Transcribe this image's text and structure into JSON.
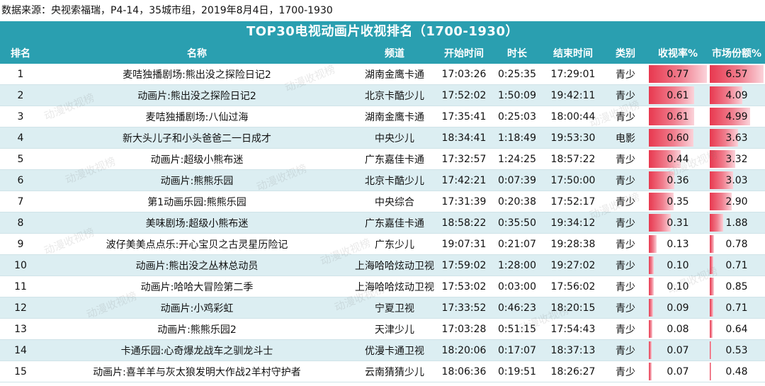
{
  "source": "数据来源：央视索福瑞，P4-14，35城市组，2019年8月4日，1700-1930",
  "title": "TOP30电视动画片收视排名（1700-1930）",
  "headers": [
    "排名",
    "名称",
    "频道",
    "开始时间",
    "时长",
    "结束时间",
    "类别",
    "收视率%",
    "市场份额%"
  ],
  "watermark": "动漫收视榜",
  "colors": {
    "header": "#2a9fb0",
    "alt_row": "#dceef2",
    "bar": "#e8384f"
  },
  "rows": [
    {
      "rank": "1",
      "name": "麦咭独播剧场:熊出没之探险日记2",
      "channel": "湖南金鹰卡通",
      "start": "17:03:26",
      "duration": "0:25:35",
      "end": "17:29:01",
      "category": "青少",
      "rating": "0.77",
      "share": "6.57"
    },
    {
      "rank": "2",
      "name": "动画片:熊出没之探险日记2",
      "channel": "北京卡酷少儿",
      "start": "17:52:02",
      "duration": "1:50:09",
      "end": "19:42:11",
      "category": "青少",
      "rating": "0.61",
      "share": "4.09"
    },
    {
      "rank": "3",
      "name": "麦咭独播剧场:八仙过海",
      "channel": "湖南金鹰卡通",
      "start": "17:35:41",
      "duration": "0:25:03",
      "end": "18:00:44",
      "category": "青少",
      "rating": "0.61",
      "share": "4.99"
    },
    {
      "rank": "4",
      "name": "新大头儿子和小头爸爸二一日成才",
      "channel": "中央少儿",
      "start": "18:34:41",
      "duration": "1:18:49",
      "end": "19:53:30",
      "category": "电影",
      "rating": "0.60",
      "share": "3.63"
    },
    {
      "rank": "5",
      "name": "动画片:超级小熊布迷",
      "channel": "广东嘉佳卡通",
      "start": "17:32:57",
      "duration": "1:24:25",
      "end": "18:57:22",
      "category": "青少",
      "rating": "0.44",
      "share": "3.32"
    },
    {
      "rank": "6",
      "name": "动画片:熊熊乐园",
      "channel": "北京卡酷少儿",
      "start": "17:42:21",
      "duration": "0:07:39",
      "end": "17:50:00",
      "category": "青少",
      "rating": "0.36",
      "share": "3.03"
    },
    {
      "rank": "7",
      "name": "第1动画乐园:熊熊乐园",
      "channel": "中央综合",
      "start": "17:31:39",
      "duration": "0:20:38",
      "end": "17:52:17",
      "category": "青少",
      "rating": "0.35",
      "share": "2.90"
    },
    {
      "rank": "8",
      "name": "美味剧场:超级小熊布迷",
      "channel": "广东嘉佳卡通",
      "start": "18:58:22",
      "duration": "0:35:50",
      "end": "19:34:12",
      "category": "青少",
      "rating": "0.31",
      "share": "1.88"
    },
    {
      "rank": "9",
      "name": "波仔美美点点乐:开心宝贝之古灵星历险记",
      "channel": "广东少儿",
      "start": "19:07:31",
      "duration": "0:21:07",
      "end": "19:28:38",
      "category": "青少",
      "rating": "0.13",
      "share": "0.78"
    },
    {
      "rank": "10",
      "name": "动画片:熊出没之丛林总动员",
      "channel": "上海哈哈炫动卫视",
      "start": "17:59:02",
      "duration": "1:28:00",
      "end": "19:27:02",
      "category": "青少",
      "rating": "0.10",
      "share": "0.71"
    },
    {
      "rank": "11",
      "name": "动画片:哈哈大冒险第二季",
      "channel": "上海哈哈炫动卫视",
      "start": "17:53:02",
      "duration": "0:03:00",
      "end": "17:56:02",
      "category": "青少",
      "rating": "0.10",
      "share": "0.85"
    },
    {
      "rank": "12",
      "name": "动画片:小鸡彩虹",
      "channel": "宁夏卫视",
      "start": "17:33:52",
      "duration": "0:46:23",
      "end": "18:20:15",
      "category": "青少",
      "rating": "0.09",
      "share": "0.71"
    },
    {
      "rank": "13",
      "name": "动画片:熊熊乐园2",
      "channel": "天津少儿",
      "start": "17:03:28",
      "duration": "0:51:15",
      "end": "17:54:43",
      "category": "青少",
      "rating": "0.08",
      "share": "0.64"
    },
    {
      "rank": "14",
      "name": "卡通乐园:心奇爆龙战车之驯龙斗士",
      "channel": "优漫卡通卫视",
      "start": "18:20:06",
      "duration": "0:17:07",
      "end": "18:37:13",
      "category": "青少",
      "rating": "0.07",
      "share": "0.53"
    },
    {
      "rank": "15",
      "name": "动画片:喜羊羊与灰太狼发明大作战2羊村守护者",
      "channel": "云南猜猜少儿",
      "start": "18:06:36",
      "duration": "0:19:51",
      "end": "18:26:27",
      "category": "青少",
      "rating": "0.07",
      "share": "0.48"
    }
  ]
}
